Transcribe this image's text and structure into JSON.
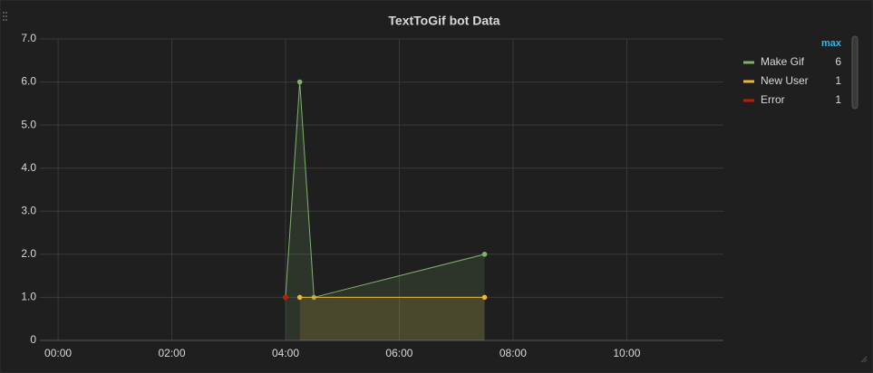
{
  "chart_data": {
    "type": "line",
    "title": "TextToGif bot Data",
    "xlim": [
      -0.32,
      11.7
    ],
    "xticks": [
      {
        "value": 0,
        "label": "00:00"
      },
      {
        "value": 2,
        "label": "02:00"
      },
      {
        "value": 4,
        "label": "04:00"
      },
      {
        "value": 6,
        "label": "06:00"
      },
      {
        "value": 8,
        "label": "08:00"
      },
      {
        "value": 10,
        "label": "10:00"
      }
    ],
    "ylim": [
      0,
      7
    ],
    "yticks": [
      0,
      {
        "value": 1,
        "label": "1.0"
      },
      {
        "value": 2,
        "label": "2.0"
      },
      {
        "value": 3,
        "label": "3.0"
      },
      {
        "value": 4,
        "label": "4.0"
      },
      {
        "value": 5,
        "label": "5.0"
      },
      {
        "value": 6,
        "label": "6.0"
      },
      {
        "value": 7,
        "label": "7.0"
      }
    ],
    "grid": true,
    "legend_header": "max",
    "series": [
      {
        "name": "Make Gif",
        "color": "#7eb26d",
        "x": [
          4.0,
          4.25,
          4.5,
          7.5
        ],
        "values": [
          1,
          6,
          1,
          2
        ],
        "max": 6,
        "fill": true
      },
      {
        "name": "New User",
        "color": "#eab839",
        "x": [
          4.25,
          7.5
        ],
        "values": [
          1,
          1
        ],
        "max": 1,
        "fill": true
      },
      {
        "name": "Error",
        "color": "#bf1b00",
        "x": [
          4.0
        ],
        "values": [
          1
        ],
        "max": 1,
        "fill": false
      }
    ]
  }
}
